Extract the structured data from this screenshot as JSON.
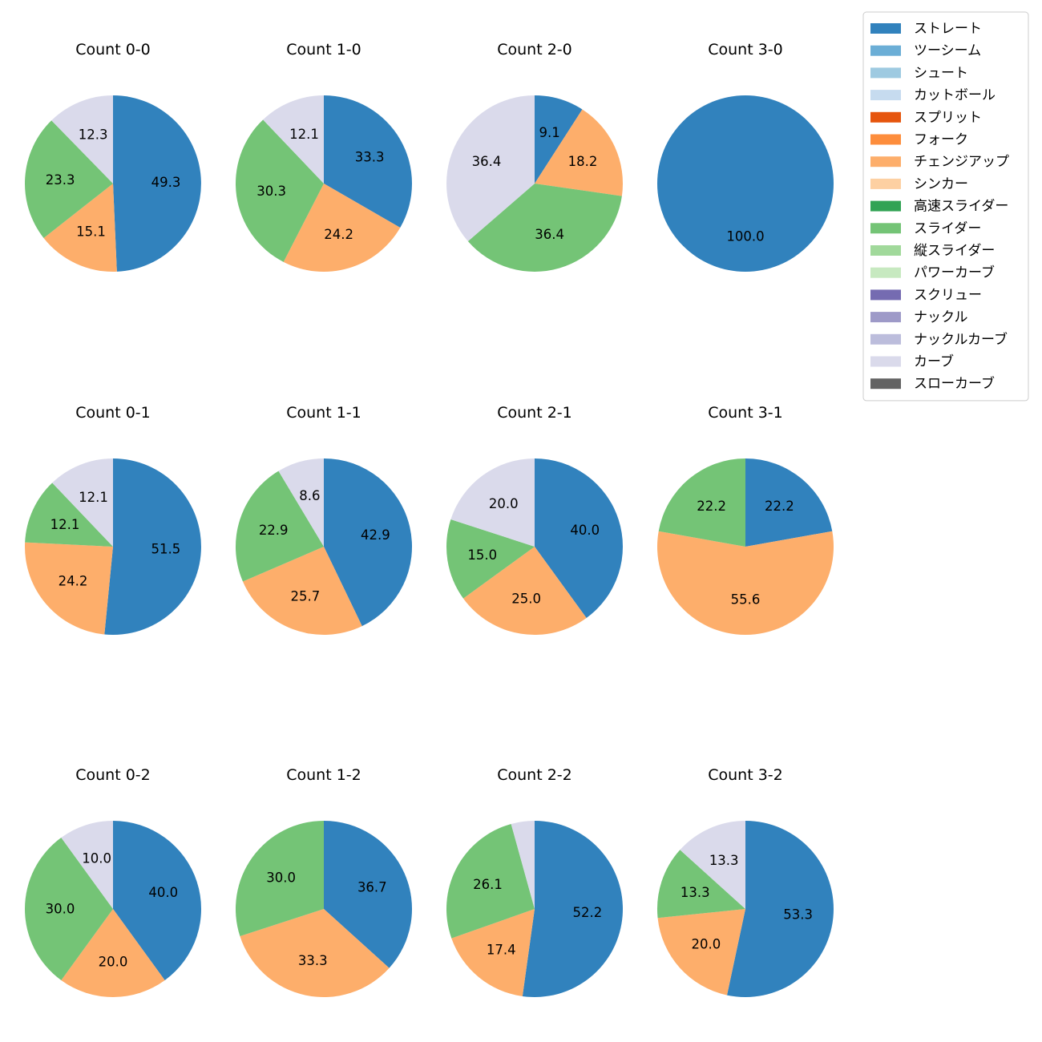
{
  "chart_data": {
    "type": "pie",
    "legend_position": "top-right",
    "legend": [
      {
        "name": "ストレート",
        "color": "#3182bd"
      },
      {
        "name": "ツーシーム",
        "color": "#6baed6"
      },
      {
        "name": "シュート",
        "color": "#9ecae1"
      },
      {
        "name": "カットボール",
        "color": "#c6dbef"
      },
      {
        "name": "スプリット",
        "color": "#e6550d"
      },
      {
        "name": "フォーク",
        "color": "#fd8d3c"
      },
      {
        "name": "チェンジアップ",
        "color": "#fdae6b"
      },
      {
        "name": "シンカー",
        "color": "#fdd0a2"
      },
      {
        "name": "高速スライダー",
        "color": "#31a354"
      },
      {
        "name": "スライダー",
        "color": "#74c476"
      },
      {
        "name": "縦スライダー",
        "color": "#a1d99b"
      },
      {
        "name": "パワーカーブ",
        "color": "#c7e9c0"
      },
      {
        "name": "スクリュー",
        "color": "#756bb1"
      },
      {
        "name": "ナックル",
        "color": "#9e9ac8"
      },
      {
        "name": "ナックルカーブ",
        "color": "#bcbddc"
      },
      {
        "name": "カーブ",
        "color": "#dadaeb"
      },
      {
        "name": "スローカーブ",
        "color": "#636363"
      }
    ],
    "charts": [
      {
        "title": "Count 0-0",
        "slices": [
          {
            "category": "ストレート",
            "value": 49.3,
            "label": "49.3"
          },
          {
            "category": "チェンジアップ",
            "value": 15.1,
            "label": "15.1"
          },
          {
            "category": "スライダー",
            "value": 23.3,
            "label": "23.3"
          },
          {
            "category": "カーブ",
            "value": 12.3,
            "label": "12.3"
          }
        ]
      },
      {
        "title": "Count 1-0",
        "slices": [
          {
            "category": "ストレート",
            "value": 33.3,
            "label": "33.3"
          },
          {
            "category": "チェンジアップ",
            "value": 24.2,
            "label": "24.2"
          },
          {
            "category": "スライダー",
            "value": 30.3,
            "label": "30.3"
          },
          {
            "category": "カーブ",
            "value": 12.1,
            "label": "12.1"
          }
        ]
      },
      {
        "title": "Count 2-0",
        "slices": [
          {
            "category": "ストレート",
            "value": 9.1,
            "label": "9.1"
          },
          {
            "category": "チェンジアップ",
            "value": 18.2,
            "label": "18.2"
          },
          {
            "category": "スライダー",
            "value": 36.4,
            "label": "36.4"
          },
          {
            "category": "カーブ",
            "value": 36.4,
            "label": "36.4"
          }
        ]
      },
      {
        "title": "Count 3-0",
        "slices": [
          {
            "category": "ストレート",
            "value": 100.0,
            "label": "100.0"
          }
        ]
      },
      {
        "title": "Count 0-1",
        "slices": [
          {
            "category": "ストレート",
            "value": 51.5,
            "label": "51.5"
          },
          {
            "category": "チェンジアップ",
            "value": 24.2,
            "label": "24.2"
          },
          {
            "category": "スライダー",
            "value": 12.1,
            "label": "12.1"
          },
          {
            "category": "カーブ",
            "value": 12.1,
            "label": "12.1"
          }
        ]
      },
      {
        "title": "Count 1-1",
        "slices": [
          {
            "category": "ストレート",
            "value": 42.9,
            "label": "42.9"
          },
          {
            "category": "チェンジアップ",
            "value": 25.7,
            "label": "25.7"
          },
          {
            "category": "スライダー",
            "value": 22.9,
            "label": "22.9"
          },
          {
            "category": "カーブ",
            "value": 8.6,
            "label": "8.6"
          }
        ]
      },
      {
        "title": "Count 2-1",
        "slices": [
          {
            "category": "ストレート",
            "value": 40.0,
            "label": "40.0"
          },
          {
            "category": "チェンジアップ",
            "value": 25.0,
            "label": "25.0"
          },
          {
            "category": "スライダー",
            "value": 15.0,
            "label": "15.0"
          },
          {
            "category": "カーブ",
            "value": 20.0,
            "label": "20.0"
          }
        ]
      },
      {
        "title": "Count 3-1",
        "slices": [
          {
            "category": "ストレート",
            "value": 22.2,
            "label": "22.2"
          },
          {
            "category": "チェンジアップ",
            "value": 55.6,
            "label": "55.6"
          },
          {
            "category": "スライダー",
            "value": 22.2,
            "label": "22.2"
          }
        ]
      },
      {
        "title": "Count 0-2",
        "slices": [
          {
            "category": "ストレート",
            "value": 40.0,
            "label": "40.0"
          },
          {
            "category": "チェンジアップ",
            "value": 20.0,
            "label": "20.0"
          },
          {
            "category": "スライダー",
            "value": 30.0,
            "label": "30.0"
          },
          {
            "category": "カーブ",
            "value": 10.0,
            "label": "10.0"
          }
        ]
      },
      {
        "title": "Count 1-2",
        "slices": [
          {
            "category": "ストレート",
            "value": 36.7,
            "label": "36.7"
          },
          {
            "category": "チェンジアップ",
            "value": 33.3,
            "label": "33.3"
          },
          {
            "category": "スライダー",
            "value": 30.0,
            "label": "30.0"
          }
        ]
      },
      {
        "title": "Count 2-2",
        "slices": [
          {
            "category": "ストレート",
            "value": 52.2,
            "label": "52.2"
          },
          {
            "category": "チェンジアップ",
            "value": 17.4,
            "label": "17.4"
          },
          {
            "category": "スライダー",
            "value": 26.1,
            "label": "26.1"
          },
          {
            "category": "カーブ",
            "value": 4.3,
            "label": ""
          }
        ]
      },
      {
        "title": "Count 3-2",
        "slices": [
          {
            "category": "ストレート",
            "value": 53.3,
            "label": "53.3"
          },
          {
            "category": "チェンジアップ",
            "value": 20.0,
            "label": "20.0"
          },
          {
            "category": "スライダー",
            "value": 13.3,
            "label": "13.3"
          },
          {
            "category": "カーブ",
            "value": 13.3,
            "label": "13.3"
          }
        ]
      }
    ]
  }
}
